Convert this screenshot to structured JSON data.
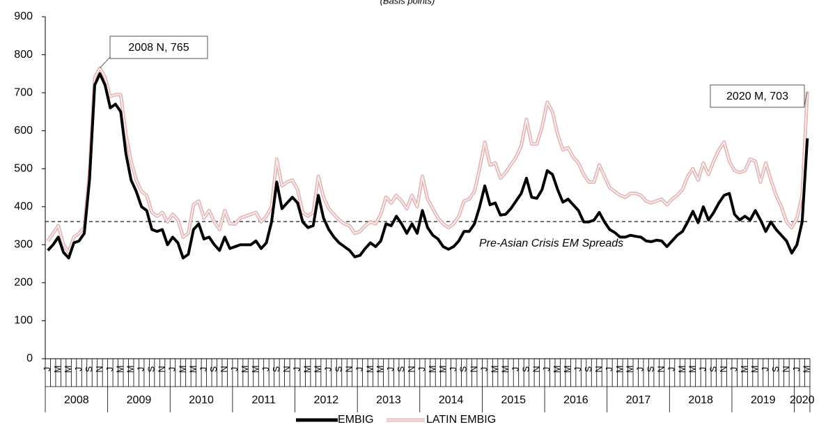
{
  "chart_data": {
    "type": "line",
    "subtitle": "(Basis points)",
    "categories": [
      "J",
      null,
      "M",
      null,
      "M",
      null,
      "J",
      null,
      "S",
      null,
      "N",
      null,
      "J",
      null,
      "M",
      null,
      "M",
      null,
      "J",
      null,
      "S",
      null,
      "N",
      null,
      "J",
      null,
      "M",
      null,
      "M",
      null,
      "J",
      null,
      "S",
      null,
      "N",
      null,
      "J",
      null,
      "M",
      null,
      "M",
      null,
      "J",
      null,
      "S",
      null,
      "N",
      null,
      "J",
      null,
      "M",
      null,
      "M",
      null,
      "J",
      null,
      "S",
      null,
      "N",
      null,
      "J",
      null,
      "M",
      null,
      "M",
      null,
      "J",
      null,
      "S",
      null,
      "N",
      null,
      "J",
      null,
      "M",
      null,
      "M",
      null,
      "J",
      null,
      "S",
      null,
      "N",
      null,
      "J",
      null,
      "M",
      null,
      "M",
      null,
      "J",
      null,
      "S",
      null,
      "N",
      null,
      "J",
      null,
      "M",
      null,
      "M",
      null,
      "J",
      null,
      "S",
      null,
      "N",
      null,
      "J",
      null,
      "M",
      null,
      "M",
      null,
      "J",
      null,
      "S",
      null,
      "N",
      null,
      "J",
      null,
      "M",
      null,
      "M",
      null,
      "J",
      null,
      "S",
      null,
      "N",
      null,
      "J",
      null,
      "M",
      null,
      "M",
      null,
      "J",
      null,
      "S",
      null,
      "N",
      null,
      "J",
      null,
      "M"
    ],
    "years": [
      "2008",
      "2009",
      "2010",
      "2011",
      "2012",
      "2013",
      "2014",
      "2015",
      "2016",
      "2017",
      "2018",
      "2019",
      "2020"
    ],
    "series": [
      {
        "name": "EMBIG",
        "color": "#000000",
        "values": [
          285,
          300,
          320,
          280,
          265,
          305,
          310,
          330,
          470,
          720,
          750,
          720,
          660,
          670,
          650,
          540,
          470,
          440,
          400,
          390,
          340,
          335,
          340,
          300,
          320,
          305,
          265,
          275,
          340,
          355,
          315,
          320,
          300,
          285,
          320,
          290,
          295,
          300,
          300,
          300,
          310,
          290,
          305,
          360,
          465,
          395,
          410,
          425,
          410,
          360,
          345,
          350,
          430,
          370,
          340,
          320,
          305,
          295,
          285,
          268,
          272,
          290,
          305,
          295,
          310,
          355,
          350,
          375,
          355,
          330,
          355,
          330,
          390,
          345,
          325,
          315,
          295,
          288,
          295,
          310,
          335,
          335,
          355,
          400,
          455,
          405,
          410,
          378,
          380,
          395,
          415,
          435,
          475,
          425,
          422,
          445,
          495,
          485,
          445,
          412,
          420,
          405,
          390,
          360,
          360,
          365,
          385,
          360,
          340,
          332,
          320,
          320,
          325,
          322,
          320,
          310,
          308,
          312,
          310,
          295,
          310,
          325,
          335,
          360,
          388,
          358,
          400,
          365,
          385,
          410,
          430,
          435,
          380,
          365,
          375,
          365,
          390,
          365,
          335,
          360,
          340,
          325,
          310,
          278,
          300,
          360,
          580
        ]
      },
      {
        "name": "LATIN EMBIG",
        "color": "#e6b8b7",
        "values": [
          310,
          330,
          350,
          300,
          280,
          320,
          330,
          345,
          490,
          740,
          765,
          740,
          690,
          695,
          695,
          590,
          520,
          470,
          440,
          430,
          385,
          375,
          385,
          360,
          380,
          365,
          320,
          330,
          405,
          415,
          370,
          390,
          360,
          340,
          390,
          355,
          355,
          370,
          375,
          380,
          385,
          360,
          375,
          400,
          525,
          455,
          465,
          470,
          445,
          385,
          375,
          385,
          480,
          425,
          395,
          380,
          365,
          355,
          350,
          330,
          335,
          350,
          360,
          355,
          380,
          425,
          410,
          430,
          415,
          395,
          430,
          400,
          480,
          420,
          395,
          370,
          355,
          345,
          355,
          375,
          415,
          420,
          440,
          500,
          570,
          510,
          515,
          475,
          490,
          510,
          530,
          560,
          630,
          565,
          565,
          610,
          675,
          650,
          590,
          550,
          555,
          530,
          515,
          485,
          465,
          465,
          510,
          480,
          450,
          440,
          430,
          425,
          435,
          435,
          430,
          415,
          410,
          415,
          420,
          405,
          420,
          430,
          445,
          480,
          500,
          470,
          515,
          485,
          520,
          550,
          570,
          520,
          495,
          490,
          495,
          525,
          520,
          465,
          515,
          470,
          430,
          400,
          360,
          345,
          370,
          430,
          703
        ]
      }
    ],
    "reference_line": 361,
    "reference_label": "Pre-Asian Crisis EM Spreads",
    "annotations": [
      "2008 N, 765",
      "2020 M, 703"
    ],
    "ylim": [
      0,
      900
    ],
    "yticks": [
      0,
      100,
      200,
      300,
      400,
      500,
      600,
      700,
      800,
      900
    ],
    "grid": false
  }
}
